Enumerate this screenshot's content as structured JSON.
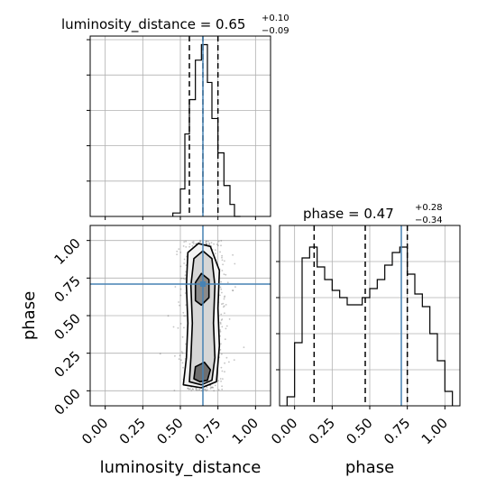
{
  "chart_data": [
    {
      "type": "histogram",
      "panel": "luminosity_distance marginal",
      "title": {
        "prefix": "luminosity_distance = 0.65",
        "plus": "+0.10",
        "minus": "−0.09"
      },
      "xlim": [
        -0.1,
        1.1
      ],
      "x_ticks": [
        "0.00",
        "0.25",
        "0.50",
        "0.75",
        "1.00"
      ],
      "bins": [
        {
          "x0": 0.45,
          "x1": 0.5,
          "count": 2
        },
        {
          "x0": 0.5,
          "x1": 0.53,
          "count": 16
        },
        {
          "x0": 0.53,
          "x1": 0.56,
          "count": 48
        },
        {
          "x0": 0.56,
          "x1": 0.6,
          "count": 68
        },
        {
          "x0": 0.6,
          "x1": 0.64,
          "count": 91
        },
        {
          "x0": 0.64,
          "x1": 0.68,
          "count": 100
        },
        {
          "x0": 0.68,
          "x1": 0.71,
          "count": 78
        },
        {
          "x0": 0.71,
          "x1": 0.75,
          "count": 57
        },
        {
          "x0": 0.75,
          "x1": 0.79,
          "count": 37
        },
        {
          "x0": 0.79,
          "x1": 0.83,
          "count": 18
        },
        {
          "x0": 0.83,
          "x1": 0.86,
          "count": 7
        },
        {
          "x0": 0.86,
          "x1": 0.9,
          "count": 0
        }
      ],
      "ylim": [
        0,
        105
      ],
      "quantiles": [
        0.56,
        0.65,
        0.75
      ],
      "truth": 0.65
    },
    {
      "type": "scatter",
      "panel": "phase vs luminosity_distance",
      "xlim": [
        -0.1,
        1.1
      ],
      "ylim": [
        -0.1,
        1.1
      ],
      "x_ticks": [
        "0.00",
        "0.25",
        "0.50",
        "0.75",
        "1.00"
      ],
      "y_ticks": [
        "0.00",
        "0.25",
        "0.50",
        "0.75",
        "1.00"
      ],
      "xlabel": "luminosity_distance",
      "ylabel": "phase",
      "truth": {
        "x": 0.65,
        "y": 0.71
      },
      "points_summary": {
        "x_center": 0.65,
        "x_spread": 0.07,
        "y_min": 0.0,
        "y_max": 1.0
      },
      "contour_levels": [
        [
          [
            0.52,
            0.04
          ],
          [
            0.54,
            0.22
          ],
          [
            0.55,
            0.45
          ],
          [
            0.54,
            0.7
          ],
          [
            0.55,
            0.92
          ],
          [
            0.62,
            0.98
          ],
          [
            0.7,
            0.96
          ],
          [
            0.76,
            0.8
          ],
          [
            0.75,
            0.55
          ],
          [
            0.76,
            0.3
          ],
          [
            0.74,
            0.06
          ],
          [
            0.64,
            0.02
          ]
        ],
        [
          [
            0.56,
            0.06
          ],
          [
            0.57,
            0.22
          ],
          [
            0.58,
            0.45
          ],
          [
            0.57,
            0.7
          ],
          [
            0.59,
            0.88
          ],
          [
            0.65,
            0.93
          ],
          [
            0.71,
            0.88
          ],
          [
            0.73,
            0.7
          ],
          [
            0.72,
            0.45
          ],
          [
            0.73,
            0.22
          ],
          [
            0.71,
            0.07
          ],
          [
            0.64,
            0.04
          ]
        ],
        [
          [
            0.59,
            0.08
          ],
          [
            0.6,
            0.16
          ],
          [
            0.66,
            0.19
          ],
          [
            0.7,
            0.14
          ],
          [
            0.68,
            0.07
          ],
          [
            0.63,
            0.06
          ]
        ],
        [
          [
            0.6,
            0.6
          ],
          [
            0.6,
            0.72
          ],
          [
            0.64,
            0.78
          ],
          [
            0.69,
            0.74
          ],
          [
            0.69,
            0.62
          ],
          [
            0.64,
            0.57
          ]
        ]
      ]
    },
    {
      "type": "histogram",
      "panel": "phase marginal",
      "title": {
        "prefix": "phase = 0.47",
        "plus": "+0.28",
        "minus": "−0.34"
      },
      "xlim": [
        -0.1,
        1.1
      ],
      "x_ticks": [
        "0.00",
        "0.25",
        "0.50",
        "0.75",
        "1.00"
      ],
      "xlabel": "phase",
      "bin_edges": [
        -0.05,
        0.0,
        0.05,
        0.1,
        0.15,
        0.2,
        0.25,
        0.3,
        0.35,
        0.4,
        0.45,
        0.5,
        0.55,
        0.6,
        0.65,
        0.7,
        0.75,
        0.8,
        0.85,
        0.9,
        0.95,
        1.0,
        1.05
      ],
      "counts": [
        5,
        35,
        82,
        88,
        77,
        70,
        64,
        60,
        56,
        56,
        60,
        65,
        70,
        78,
        85,
        88,
        73,
        62,
        55,
        40,
        25,
        8
      ],
      "ylim": [
        0,
        100
      ],
      "quantiles": [
        0.13,
        0.47,
        0.75
      ],
      "truth": 0.71
    }
  ],
  "colors": {
    "truth": "#4682b4",
    "hist": "#000000",
    "grid": "#b0b0b0"
  }
}
